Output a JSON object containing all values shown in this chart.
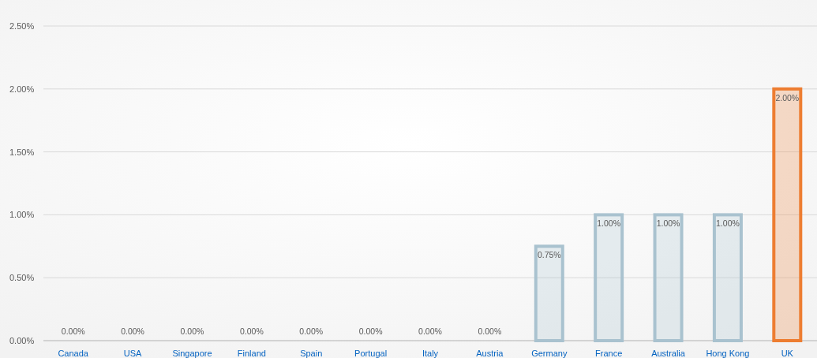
{
  "chart_data": {
    "type": "bar",
    "categories": [
      "Canada",
      "USA",
      "Singapore",
      "Finland",
      "Spain",
      "Portugal",
      "Italy",
      "Austria",
      "Germany",
      "France",
      "Australia",
      "Hong Kong",
      "UK"
    ],
    "values": [
      0,
      0,
      0,
      0,
      0,
      0,
      0,
      0,
      0.75,
      1,
      1,
      1,
      2
    ],
    "colors": [
      "#a9c2cf",
      "#a9c2cf",
      "#a9c2cf",
      "#a9c2cf",
      "#a9c2cf",
      "#a9c2cf",
      "#a9c2cf",
      "#a9c2cf",
      "#a9c2cf",
      "#a9c2cf",
      "#a9c2cf",
      "#a9c2cf",
      "#ed7d31"
    ],
    "value_labels": [
      "0.00%",
      "0.00%",
      "0.00%",
      "0.00%",
      "0.00%",
      "0.00%",
      "0.00%",
      "0.00%",
      "0.75%",
      "1.00%",
      "1.00%",
      "1.00%",
      "2.00%"
    ],
    "ylim": [
      0,
      2.5
    ],
    "yticks": [
      {
        "value": 0,
        "label": "0.00%"
      },
      {
        "value": 0.5,
        "label": "0.50%"
      },
      {
        "value": 1,
        "label": "1.00%"
      },
      {
        "value": 1.5,
        "label": "1.50%"
      },
      {
        "value": 2,
        "label": "2.00%"
      },
      {
        "value": 2.5,
        "label": "2.50%"
      }
    ],
    "grid": "y"
  }
}
